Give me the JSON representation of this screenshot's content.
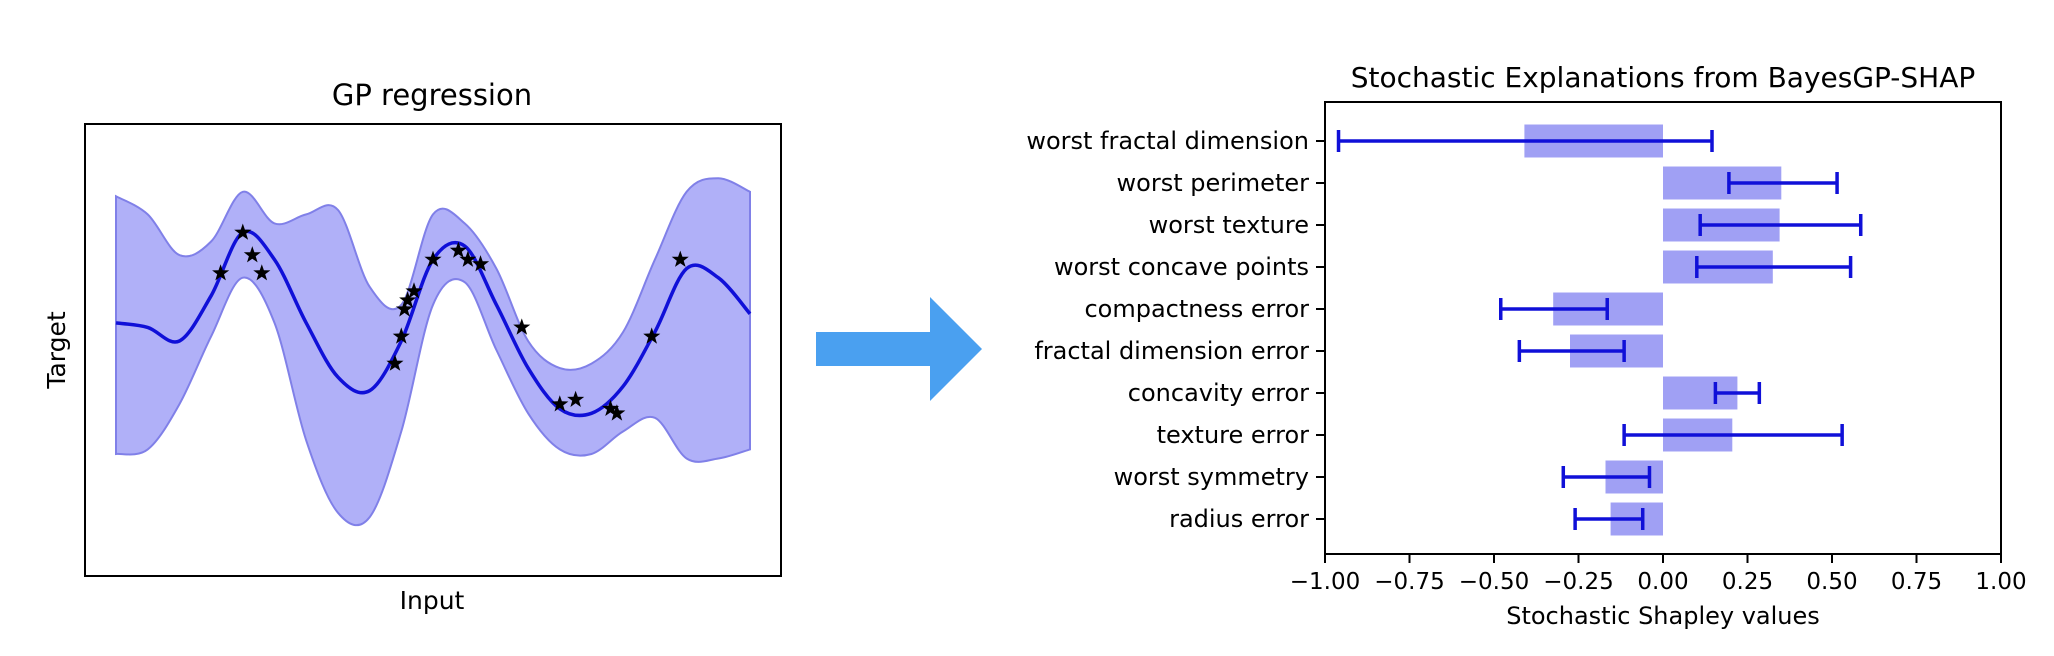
{
  "colors": {
    "band": "#b0b0f8",
    "band_edge": "#8080e8",
    "mean_line": "#1010d8",
    "marker": "#000000",
    "arrow": "#4aa0f0",
    "bar": "#a0a0f4",
    "errorbar": "#1010d8"
  },
  "chart_data": [
    {
      "type": "line",
      "title": "GP regression",
      "xlabel": "Input",
      "ylabel": "Target",
      "axis_ticks": "none",
      "xlim": [
        0,
        1
      ],
      "ylim": [
        -2.5,
        2.5
      ],
      "series": [
        {
          "role": "posterior mean",
          "x": [
            0.0,
            0.05,
            0.1,
            0.15,
            0.2,
            0.25,
            0.3,
            0.35,
            0.4,
            0.45,
            0.5,
            0.55,
            0.6,
            0.65,
            0.7,
            0.75,
            0.8,
            0.85,
            0.9,
            0.95,
            1.0
          ],
          "y": [
            0.3,
            0.25,
            0.1,
            0.6,
            1.3,
            1.0,
            0.3,
            -0.3,
            -0.45,
            0.1,
            1.0,
            1.15,
            0.5,
            -0.2,
            -0.65,
            -0.7,
            -0.4,
            0.2,
            0.9,
            0.8,
            0.4
          ]
        },
        {
          "role": "confidence band upper",
          "x": [
            0.0,
            0.05,
            0.1,
            0.15,
            0.2,
            0.25,
            0.3,
            0.35,
            0.4,
            0.45,
            0.5,
            0.55,
            0.6,
            0.65,
            0.7,
            0.75,
            0.8,
            0.85,
            0.9,
            0.95,
            1.0
          ],
          "y": [
            1.7,
            1.5,
            1.05,
            1.2,
            1.75,
            1.4,
            1.5,
            1.55,
            0.7,
            0.5,
            1.5,
            1.4,
            0.9,
            0.1,
            -0.2,
            -0.15,
            0.2,
            1.0,
            1.75,
            1.9,
            1.75
          ]
        },
        {
          "role": "confidence band lower",
          "x": [
            0.0,
            0.05,
            0.1,
            0.15,
            0.2,
            0.25,
            0.3,
            0.35,
            0.4,
            0.45,
            0.5,
            0.55,
            0.6,
            0.65,
            0.7,
            0.75,
            0.8,
            0.85,
            0.9,
            0.95,
            1.0
          ],
          "y": [
            -1.15,
            -1.1,
            -0.6,
            0.15,
            0.8,
            0.3,
            -1.0,
            -1.8,
            -1.85,
            -0.9,
            0.5,
            0.75,
            0.0,
            -0.7,
            -1.1,
            -1.15,
            -0.9,
            -0.75,
            -1.2,
            -1.2,
            -1.1
          ]
        },
        {
          "role": "observations",
          "x": [
            0.165,
            0.2,
            0.215,
            0.23,
            0.44,
            0.45,
            0.455,
            0.46,
            0.47,
            0.5,
            0.54,
            0.555,
            0.575,
            0.64,
            0.7,
            0.725,
            0.78,
            0.79,
            0.845,
            0.89
          ],
          "y": [
            0.85,
            1.3,
            1.05,
            0.85,
            -0.15,
            0.15,
            0.45,
            0.55,
            0.65,
            1.0,
            1.1,
            1.0,
            0.95,
            0.25,
            -0.6,
            -0.55,
            -0.65,
            -0.7,
            0.15,
            1.0
          ]
        }
      ]
    },
    {
      "type": "bar",
      "orientation": "horizontal",
      "title": "Stochastic Explanations from BayesGP-SHAP",
      "xlabel": "Stochastic Shapley values",
      "ylabel": "",
      "xlim": [
        -1.0,
        1.0
      ],
      "xticks": [
        "−1.00",
        "−0.75",
        "−0.50",
        "−0.25",
        "0.00",
        "0.25",
        "0.50",
        "0.75",
        "1.00"
      ],
      "xtick_values": [
        -1.0,
        -0.75,
        -0.5,
        -0.25,
        0.0,
        0.25,
        0.5,
        0.75,
        1.0
      ],
      "categories": [
        "worst fractal dimension",
        "worst perimeter",
        "worst texture",
        "worst concave points",
        "compactness error",
        "fractal dimension error",
        "concavity error",
        "texture error",
        "worst symmetry",
        "radius error"
      ],
      "values": [
        -0.41,
        0.35,
        0.345,
        0.325,
        -0.325,
        -0.275,
        0.22,
        0.205,
        -0.17,
        -0.155
      ],
      "error_low": [
        -0.96,
        0.195,
        0.11,
        0.1,
        -0.48,
        -0.425,
        0.155,
        -0.115,
        -0.295,
        -0.26
      ],
      "error_high": [
        0.145,
        0.515,
        0.585,
        0.555,
        -0.165,
        -0.115,
        0.285,
        0.53,
        -0.04,
        -0.06
      ]
    }
  ]
}
